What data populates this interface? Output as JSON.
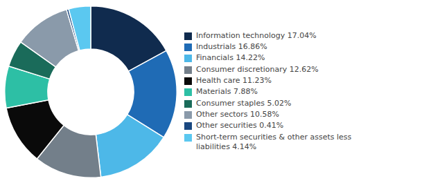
{
  "chart_data": {
    "type": "doughnut",
    "categories": [
      "Information technology 17.04%",
      "Industrials 16.86%",
      "Financials 14.22%",
      "Consumer discretionary 12.62%",
      "Health care 11.23%",
      "Materials 7.88%",
      "Consumer staples 5.02%",
      "Other sectors 10.58%",
      "Other securities 0.41%",
      "Short-term securities & other assets less\nliabilities 4.14%"
    ],
    "values": [
      17.04,
      16.86,
      14.22,
      12.62,
      11.23,
      7.88,
      5.02,
      10.58,
      0.41,
      4.14
    ],
    "colors": [
      "#102b4e",
      "#1f6bb5",
      "#4db8e8",
      "#737f8a",
      "#0a0a0a",
      "#2dbfa5",
      "#1a6b5a",
      "#8a9aaa",
      "#1a4880",
      "#5bc8f0"
    ],
    "legend": "right"
  }
}
